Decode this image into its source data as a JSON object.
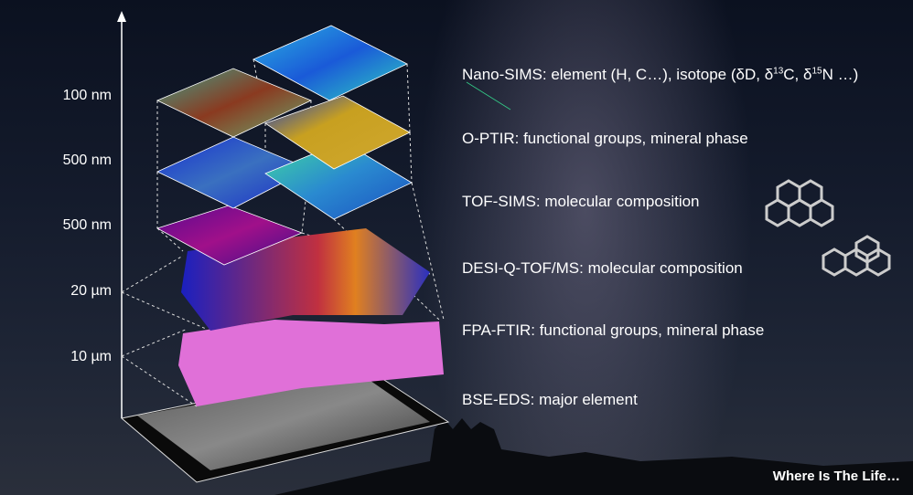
{
  "scale_labels": [
    "100 nm",
    "500 nm",
    "500 nm",
    "20 µm",
    "10 µm"
  ],
  "techniques": [
    {
      "name": "Nano-SIMS",
      "desc_pre": "element (H, C…), isotope (δD, δ",
      "sup1": "13",
      "mid": "C, δ",
      "sup2": "15",
      "post": "N …)"
    },
    {
      "name": "O-PTIR",
      "desc": "functional groups, mineral phase"
    },
    {
      "name": "TOF-SIMS",
      "desc": "molecular composition"
    },
    {
      "name": "DESI-Q-TOF/MS",
      "desc": "molecular composition"
    },
    {
      "name": "FPA-FTIR",
      "desc": "functional groups, mineral phase"
    },
    {
      "name": "BSE-EDS",
      "desc": "major element"
    }
  ],
  "footer": "Where Is The Life…"
}
